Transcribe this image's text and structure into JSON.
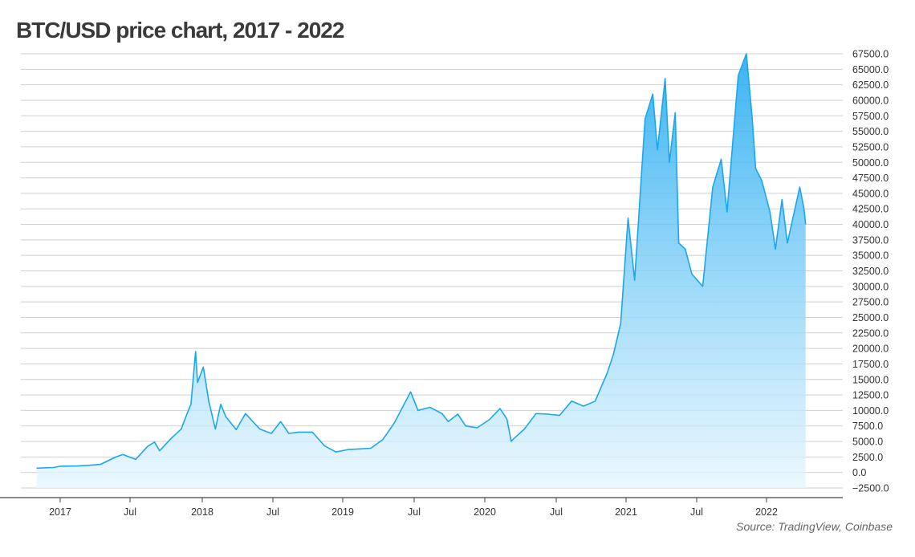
{
  "title": "BTC/USD price chart, 2017 - 2022",
  "source": "Source: TradingView, Coinbase",
  "colors": {
    "line": "#1aa7f0",
    "fill_top": "#1aa7f0",
    "fill_bottom": "#e6f6fe",
    "grid": "#cfcfcf",
    "text": "#333333"
  },
  "chart_data": {
    "type": "area",
    "x_tick_labels": [
      "2017",
      "Jul",
      "2018",
      "Jul",
      "2019",
      "Jul",
      "2020",
      "Jul",
      "2021",
      "Jul",
      "2022"
    ],
    "y_tick_labels": [
      "67500.0",
      "65000.0",
      "62500.0",
      "60000.0",
      "57500.0",
      "55000.0",
      "52500.0",
      "50000.0",
      "47500.0",
      "45000.0",
      "42500.0",
      "40000.0",
      "37500.0",
      "35000.0",
      "32500.0",
      "30000.0",
      "27500.0",
      "25000.0",
      "22500.0",
      "20000.0",
      "17500.0",
      "15000.0",
      "12500.0",
      "10000.0",
      "7500.0",
      "5000.0",
      "2500.0",
      "0.0",
      "−2500.0"
    ],
    "ylim": [
      -2500,
      67500
    ],
    "grid": true,
    "y_axis_position": "right",
    "series": [
      {
        "x": [
          "2016-11-01",
          "2016-12-15",
          "2017-01-01",
          "2017-02-15",
          "2017-03-15",
          "2017-04-15",
          "2017-05-25",
          "2017-06-12",
          "2017-07-15",
          "2017-08-15",
          "2017-09-02",
          "2017-09-15",
          "2017-10-15",
          "2017-11-10",
          "2017-11-25",
          "2017-12-05",
          "2017-12-17",
          "2017-12-22",
          "2018-01-06",
          "2018-01-20",
          "2018-02-06",
          "2018-02-20",
          "2018-03-05",
          "2018-04-01",
          "2018-04-25",
          "2018-06-01",
          "2018-07-01",
          "2018-07-25",
          "2018-08-15",
          "2018-09-10",
          "2018-10-15",
          "2018-11-15",
          "2018-12-15",
          "2019-01-15",
          "2019-02-15",
          "2019-03-15",
          "2019-04-15",
          "2019-05-15",
          "2019-06-26",
          "2019-07-15",
          "2019-08-15",
          "2019-09-15",
          "2019-10-01",
          "2019-10-26",
          "2019-11-15",
          "2019-12-15",
          "2020-01-15",
          "2020-02-12",
          "2020-03-01",
          "2020-03-12",
          "2020-03-16",
          "2020-04-15",
          "2020-05-15",
          "2020-06-15",
          "2020-07-15",
          "2020-08-15",
          "2020-09-15",
          "2020-10-15",
          "2020-11-15",
          "2020-12-01",
          "2020-12-20",
          "2021-01-08",
          "2021-01-25",
          "2021-02-21",
          "2021-03-13",
          "2021-03-25",
          "2021-04-14",
          "2021-04-25",
          "2021-05-10",
          "2021-05-19",
          "2021-06-05",
          "2021-06-22",
          "2021-07-20",
          "2021-08-15",
          "2021-09-06",
          "2021-09-21",
          "2021-10-20",
          "2021-11-10",
          "2021-11-25",
          "2021-12-04",
          "2021-12-20",
          "2022-01-10",
          "2022-01-24",
          "2022-02-10",
          "2022-02-24",
          "2022-03-28",
          "2022-04-08",
          "2022-04-12"
        ],
        "values": [
          700,
          800,
          1000,
          1050,
          1150,
          1300,
          2500,
          2900,
          2100,
          4200,
          4900,
          3500,
          5500,
          7000,
          9500,
          11000,
          19500,
          14500,
          17000,
          11500,
          7000,
          11000,
          9000,
          6900,
          9500,
          7000,
          6300,
          8200,
          6300,
          6500,
          6500,
          4300,
          3300,
          3700,
          3800,
          3900,
          5300,
          8000,
          13000,
          10000,
          10500,
          9500,
          8200,
          9400,
          7500,
          7200,
          8500,
          10300,
          8600,
          5000,
          5300,
          7000,
          9500,
          9400,
          9200,
          11500,
          10700,
          11500,
          16000,
          19000,
          24000,
          41000,
          31000,
          57000,
          61000,
          52000,
          63500,
          50000,
          58000,
          37000,
          36000,
          32000,
          30000,
          46000,
          50500,
          42000,
          64000,
          67500,
          57000,
          49000,
          47000,
          42000,
          36000,
          44000,
          37000,
          46000,
          42500,
          40000
        ]
      }
    ]
  }
}
